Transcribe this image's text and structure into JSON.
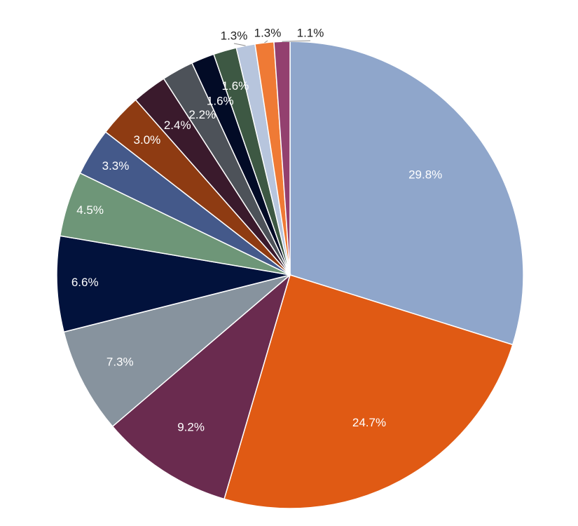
{
  "chart_data": {
    "type": "pie",
    "start_angle_deg": 0,
    "direction": "clockwise",
    "slices": [
      {
        "label": "29.8%",
        "value": 29.8,
        "color": "#8fa6cb"
      },
      {
        "label": "24.7%",
        "value": 24.7,
        "color": "#e05a14"
      },
      {
        "label": "9.2%",
        "value": 9.2,
        "color": "#6a2b4f"
      },
      {
        "label": "7.3%",
        "value": 7.3,
        "color": "#87939e"
      },
      {
        "label": "6.6%",
        "value": 6.6,
        "color": "#02123c"
      },
      {
        "label": "4.5%",
        "value": 4.5,
        "color": "#6e9678"
      },
      {
        "label": "3.3%",
        "value": 3.3,
        "color": "#44598a"
      },
      {
        "label": "3.0%",
        "value": 3.0,
        "color": "#8e3b12"
      },
      {
        "label": "2.4%",
        "value": 2.4,
        "color": "#3a1a2c"
      },
      {
        "label": "2.2%",
        "value": 2.2,
        "color": "#4d5259"
      },
      {
        "label": "1.6%",
        "value": 1.6,
        "color": "#020b26"
      },
      {
        "label": "1.6%",
        "value": 1.6,
        "color": "#3d5843"
      },
      {
        "label": "1.3%",
        "value": 1.3,
        "color": "#b7c5dd"
      },
      {
        "label": "1.3%",
        "value": 1.3,
        "color": "#ef7a35"
      },
      {
        "label": "1.1%",
        "value": 1.1,
        "color": "#93406f"
      }
    ]
  }
}
